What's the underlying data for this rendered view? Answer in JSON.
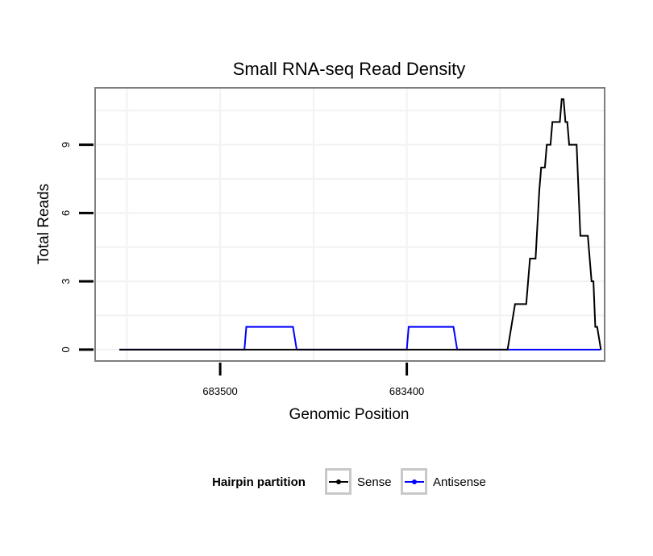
{
  "chart_data": {
    "type": "line",
    "title": "Small RNA-seq Read Density",
    "xlabel": "Genomic Position",
    "ylabel": "Total Reads",
    "x_reversed": true,
    "xlim": [
      683567,
      683294
    ],
    "ylim": [
      -0.5,
      11.5
    ],
    "x_ticks": [
      683500,
      683400
    ],
    "x_tick_labels": [
      "683500",
      "683400"
    ],
    "y_ticks": [
      0,
      3,
      6,
      9
    ],
    "y_tick_labels": [
      "0",
      "3",
      "6",
      "9"
    ],
    "grid": true,
    "legend": {
      "title": "Hairpin partition",
      "placement": "bottom"
    },
    "series": [
      {
        "name": "Sense",
        "color": "#000000",
        "points": [
          [
            683554,
            0
          ],
          [
            683346,
            0
          ],
          [
            683344,
            1
          ],
          [
            683342,
            2
          ],
          [
            683336,
            2
          ],
          [
            683334,
            4
          ],
          [
            683331,
            4
          ],
          [
            683329,
            7
          ],
          [
            683328,
            8
          ],
          [
            683326,
            8
          ],
          [
            683325,
            9
          ],
          [
            683323,
            9
          ],
          [
            683322,
            10
          ],
          [
            683318,
            10
          ],
          [
            683317,
            11
          ],
          [
            683316,
            11
          ],
          [
            683315,
            10
          ],
          [
            683314,
            10
          ],
          [
            683313,
            9
          ],
          [
            683309,
            9
          ],
          [
            683307,
            5
          ],
          [
            683303,
            5
          ],
          [
            683301,
            3
          ],
          [
            683300,
            3
          ],
          [
            683299,
            1
          ],
          [
            683298,
            1
          ],
          [
            683296,
            0
          ]
        ]
      },
      {
        "name": "Antisense",
        "color": "#0000ff",
        "points": [
          [
            683554,
            0
          ],
          [
            683487,
            0
          ],
          [
            683486,
            1
          ],
          [
            683461,
            1
          ],
          [
            683459,
            0
          ],
          [
            683400,
            0
          ],
          [
            683399,
            1
          ],
          [
            683375,
            1
          ],
          [
            683373,
            0
          ],
          [
            683296,
            0
          ]
        ]
      }
    ]
  }
}
